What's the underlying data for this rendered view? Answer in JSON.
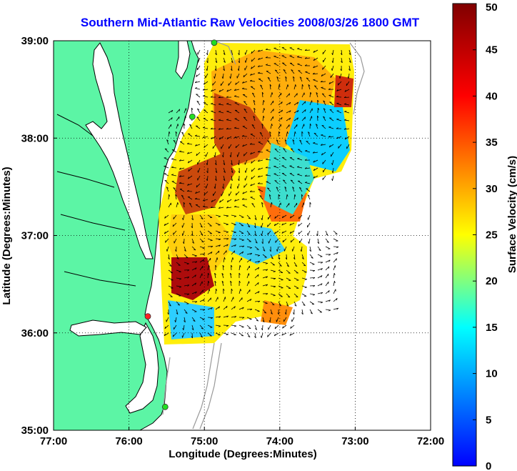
{
  "title": "Southern Mid-Atlantic Raw Velocities 2008/03/26 1800 GMT",
  "xlabel": "Longitude (Degrees:Minutes)",
  "ylabel": "Latitude (Degrees:Minutes)",
  "colorbar_label": "Surface Velocity (cm/s)",
  "x_ticks": [
    {
      "lon": -77,
      "label": "77:00"
    },
    {
      "lon": -76,
      "label": "76:00"
    },
    {
      "lon": -75,
      "label": "75:00"
    },
    {
      "lon": -74,
      "label": "74:00"
    },
    {
      "lon": -73,
      "label": "73:00"
    },
    {
      "lon": -72,
      "label": "72:00"
    }
  ],
  "y_ticks": [
    {
      "lat": 39,
      "label": "39:00"
    },
    {
      "lat": 38,
      "label": "38:00"
    },
    {
      "lat": 37,
      "label": "37:00"
    },
    {
      "lat": 36,
      "label": "36:00"
    },
    {
      "lat": 35,
      "label": "35:00"
    }
  ],
  "colorbar": {
    "min": 0,
    "max": 50,
    "ticks": [
      {
        "value": 50,
        "label": "50"
      },
      {
        "value": 45,
        "label": "45"
      },
      {
        "value": 40,
        "label": "40"
      },
      {
        "value": 35,
        "label": "35"
      },
      {
        "value": 30,
        "label": "30"
      },
      {
        "value": 25,
        "label": "25"
      },
      {
        "value": 20,
        "label": "20"
      },
      {
        "value": 15,
        "label": "15"
      },
      {
        "value": 10,
        "label": "10"
      },
      {
        "value": 5,
        "label": "5"
      },
      {
        "value": 0,
        "label": "0"
      }
    ],
    "colormap": [
      "#0000ff",
      "#00ffff",
      "#ffff00",
      "#ff0000",
      "#800000"
    ]
  },
  "colors": {
    "land": "#5cf5a5",
    "coast": "#000000",
    "bathymetry": "#999999",
    "grid": "#000000"
  },
  "stations": [
    {
      "lon": -74.87,
      "lat": 38.98,
      "color": "#22dd22"
    },
    {
      "lon": -75.16,
      "lat": 38.22,
      "color": "#22dd22"
    },
    {
      "lon": -75.75,
      "lat": 36.17,
      "color": "#ff2222"
    },
    {
      "lon": -75.52,
      "lat": 35.24,
      "color": "#22dd22"
    }
  ]
}
